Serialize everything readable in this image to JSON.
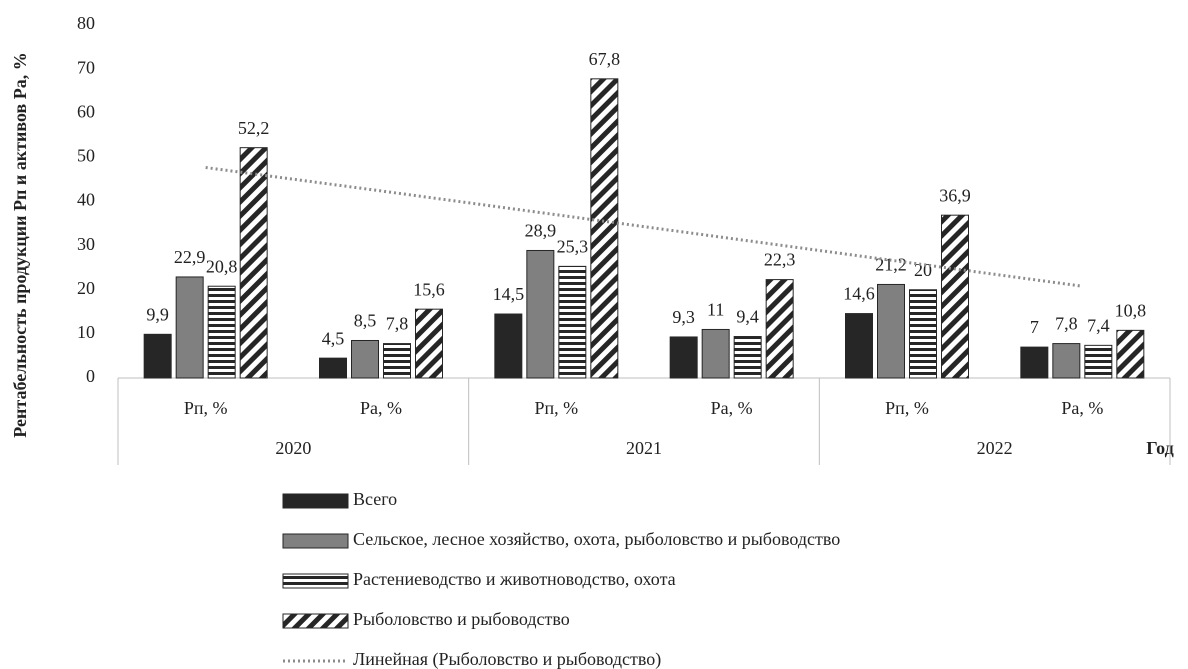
{
  "chart_data": {
    "type": "bar",
    "y_label": "Рентабельность продукции Рп и активов Ра, %",
    "x_label": "Год",
    "categories": [
      "Рп, %",
      "Ра, %",
      "Рп, %",
      "Ра, %",
      "Рп, %",
      "Ра, %"
    ],
    "groups": [
      "2020",
      "2021",
      "2022"
    ],
    "ylim": [
      0,
      80
    ],
    "yticks": [
      0,
      10,
      20,
      30,
      40,
      50,
      60,
      70,
      80
    ],
    "grid": false,
    "legend": "bottom",
    "series": [
      {
        "name": "Всего",
        "color": "#262626",
        "pattern": "solid",
        "values": [
          9.9,
          4.5,
          14.5,
          9.3,
          14.6,
          7
        ],
        "value_labels": [
          "9,9",
          "4,5",
          "14,5",
          "9,3",
          "14,6",
          "7"
        ]
      },
      {
        "name": "Сельское, лесное хозяйство, охота, рыболовство и рыбоводство",
        "color": "#808080",
        "pattern": "solid",
        "values": [
          22.9,
          8.5,
          28.9,
          11,
          21.2,
          7.8
        ],
        "value_labels": [
          "22,9",
          "8,5",
          "28,9",
          "11",
          "21,2",
          "7,8"
        ]
      },
      {
        "name": "Растениеводство и животноводство, охота",
        "color": "#262626",
        "pattern": "horizontal",
        "values": [
          20.8,
          7.8,
          25.3,
          9.4,
          20,
          7.4
        ],
        "value_labels": [
          "20,8",
          "7,8",
          "25,3",
          "9,4",
          "20",
          "7,4"
        ]
      },
      {
        "name": "Рыболовство и рыбоводство",
        "color": "#262626",
        "pattern": "diagonal",
        "values": [
          52.2,
          15.6,
          67.8,
          22.3,
          36.9,
          10.8
        ],
        "value_labels": [
          "52,2",
          "15,6",
          "67,8",
          "22,3",
          "36,9",
          "10,8"
        ]
      }
    ],
    "trendline": {
      "name": "Линейная (Рыболовство и рыбоводство)",
      "color": "#8c8c8c",
      "values": [
        47.7,
        42.4,
        37.0,
        31.6,
        26.2,
        20.8
      ]
    }
  }
}
